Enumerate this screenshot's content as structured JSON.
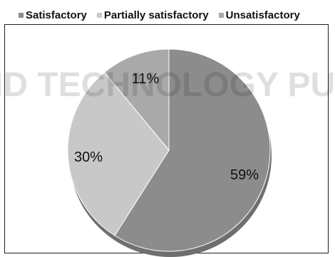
{
  "chart_data": {
    "type": "pie",
    "title": "",
    "slices": [
      {
        "label": "Satisfactory",
        "value": 59,
        "display": "59%",
        "color": "#8c8c8c"
      },
      {
        "label": "Partially satisfactory",
        "value": 30,
        "display": "30%",
        "color": "#c8c8c8"
      },
      {
        "label": "Unsatisfactory",
        "value": 11,
        "display": "11%",
        "color": "#a9a9a9"
      }
    ],
    "legend_position": "top"
  },
  "legend": {
    "items": [
      {
        "label": "Satisfactory",
        "color": "#8c8c8c"
      },
      {
        "label": "Partially satisfactory",
        "color": "#c8c8c8"
      },
      {
        "label": "Unsatisfactory",
        "color": "#a9a9a9"
      }
    ]
  },
  "watermark": {
    "text": "SCIENCE AND TECHNOLOGY PUBLICATIONS"
  }
}
